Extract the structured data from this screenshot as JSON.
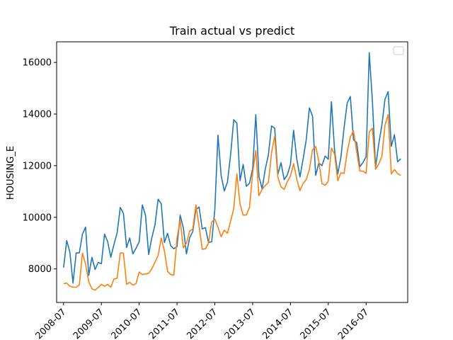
{
  "chart_data": {
    "type": "line",
    "title": "Train actual vs predict",
    "xlabel": "",
    "ylabel": "HOUSING_E",
    "x_start": "2008-07",
    "x_ticks": [
      "2008-07",
      "2009-07",
      "2010-07",
      "2011-07",
      "2012-07",
      "2013-07",
      "2014-07",
      "2015-07",
      "2016-07"
    ],
    "ylim": [
      6700,
      16800
    ],
    "y_ticks": [
      8000,
      10000,
      12000,
      14000,
      16000
    ],
    "grid": false,
    "legend": {
      "position": "top-right",
      "entries": []
    },
    "series": [
      {
        "color": "#1f77b4",
        "values": [
          8050,
          9100,
          8650,
          7450,
          8620,
          8620,
          9350,
          9620,
          7750,
          8450,
          7980,
          8250,
          8200,
          9350,
          9050,
          8450,
          8950,
          9400,
          10380,
          10150,
          8830,
          9200,
          8580,
          8800,
          9050,
          10480,
          10080,
          8560,
          9200,
          9700,
          10700,
          10520,
          9020,
          9380,
          8900,
          8780,
          8870,
          10080,
          9600,
          8580,
          9200,
          9450,
          10300,
          10400,
          9550,
          9600,
          9020,
          9050,
          10300,
          13180,
          11620,
          11020,
          11360,
          12420,
          13780,
          13650,
          11420,
          12050,
          11200,
          11320,
          11880,
          13980,
          11580,
          11100,
          11860,
          12420,
          13540,
          13450,
          11660,
          12120,
          11460,
          11640,
          12050,
          13370,
          12260,
          11560,
          12250,
          13000,
          14240,
          13920,
          11620,
          12100,
          12000,
          12370,
          12250,
          14480,
          12600,
          11680,
          12320,
          13460,
          14430,
          14680,
          13000,
          12900,
          11960,
          12120,
          12350,
          16380,
          14500,
          11950,
          12830,
          13560,
          14580,
          14870,
          12750,
          13200,
          12150,
          12270
        ]
      },
      {
        "color": "#ff7f0e",
        "values": [
          7430,
          7450,
          7330,
          7290,
          7290,
          7380,
          8610,
          8180,
          7500,
          7230,
          7180,
          7280,
          7400,
          7330,
          7400,
          7290,
          7610,
          7640,
          8620,
          8610,
          7400,
          7480,
          7370,
          7430,
          7880,
          7780,
          7800,
          7830,
          8000,
          8260,
          8520,
          9200,
          8700,
          7910,
          7780,
          7760,
          9180,
          9900,
          8820,
          9000,
          9460,
          9550,
          10480,
          9670,
          8760,
          8780,
          9000,
          9820,
          9930,
          9620,
          9250,
          9500,
          9380,
          9840,
          10330,
          11680,
          10510,
          10080,
          10090,
          10380,
          11710,
          12590,
          10840,
          11080,
          11230,
          11350,
          12510,
          13150,
          11550,
          11180,
          11080,
          11380,
          11600,
          12080,
          11480,
          11030,
          11310,
          11460,
          11850,
          12620,
          12740,
          12170,
          11300,
          11240,
          11400,
          12680,
          12450,
          11420,
          11720,
          11700,
          12520,
          13120,
          13350,
          12560,
          11790,
          11790,
          11700,
          13310,
          13450,
          11860,
          12060,
          12350,
          13570,
          13980,
          11680,
          11850,
          11690,
          11620
        ]
      }
    ]
  }
}
